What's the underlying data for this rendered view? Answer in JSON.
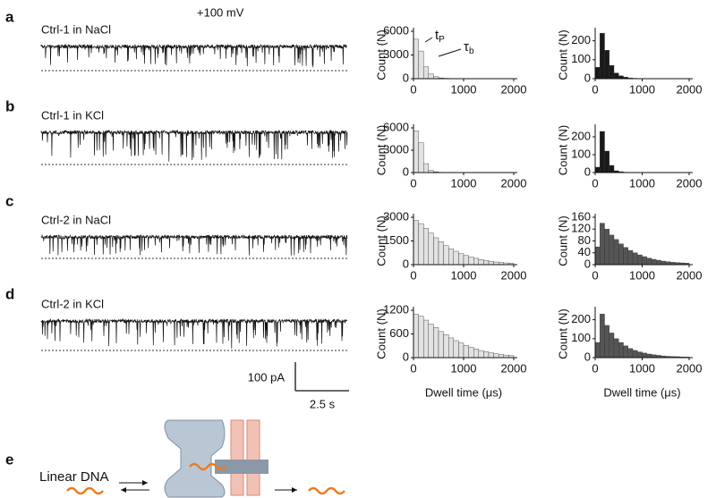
{
  "chart_data": [
    {
      "type": "histogram",
      "ylabel": "Count (N)",
      "bins": [
        0,
        100,
        200,
        300,
        400,
        500,
        600,
        700,
        800,
        900,
        1000,
        1100,
        1200,
        1300,
        1400,
        1500,
        1600,
        1700,
        1800,
        1900,
        2000
      ],
      "values": [
        5000,
        3500,
        1500,
        600,
        250,
        100,
        50,
        20,
        10,
        5,
        0,
        0,
        0,
        0,
        0,
        0,
        0,
        0,
        0,
        0
      ],
      "color": "#e2e2e2",
      "xlim": [
        0,
        2000
      ],
      "xticks": [
        0,
        1000,
        2000
      ],
      "ylim": [
        0,
        6000
      ],
      "yticks": [
        0,
        3000,
        6000
      ],
      "annotations": [
        {
          "text": "t",
          "subscript": "P"
        },
        {
          "text": "τ",
          "subscript": "b"
        }
      ]
    },
    {
      "type": "histogram",
      "ylabel": "Count (N)",
      "bins": [
        0,
        100,
        200,
        300,
        400,
        500,
        600,
        700,
        800,
        900,
        1000,
        1100,
        1200,
        1300,
        1400,
        1500,
        1600,
        1700,
        1800,
        1900,
        2000
      ],
      "values": [
        60,
        240,
        150,
        70,
        30,
        15,
        8,
        4,
        2,
        1,
        0,
        0,
        0,
        0,
        0,
        0,
        0,
        0,
        0,
        0
      ],
      "color": "#1a1a1a",
      "xlim": [
        0,
        2000
      ],
      "xticks": [
        0,
        1000,
        2000
      ],
      "ylim": [
        0,
        250
      ],
      "yticks": [
        0,
        100,
        200
      ]
    },
    {
      "type": "histogram",
      "ylabel": "Count (N)",
      "bins": [
        0,
        100,
        200,
        300,
        400,
        500,
        600,
        700,
        800,
        900,
        1000,
        1100,
        1200,
        1300,
        1400,
        1500,
        1600,
        1700,
        1800,
        1900,
        2000
      ],
      "values": [
        5600,
        4000,
        1200,
        300,
        100,
        40,
        15,
        5,
        0,
        0,
        0,
        0,
        0,
        0,
        0,
        0,
        0,
        0,
        0,
        0
      ],
      "color": "#e2e2e2",
      "xlim": [
        0,
        2000
      ],
      "xticks": [
        0,
        1000,
        2000
      ],
      "ylim": [
        0,
        6000
      ],
      "yticks": [
        0,
        3000,
        6000
      ]
    },
    {
      "type": "histogram",
      "ylabel": "Count (N)",
      "bins": [
        0,
        100,
        200,
        300,
        400,
        500,
        600,
        700,
        800,
        900,
        1000,
        1100,
        1200,
        1300,
        1400,
        1500,
        1600,
        1700,
        1800,
        1900,
        2000
      ],
      "values": [
        30,
        230,
        120,
        40,
        10,
        5,
        2,
        1,
        0,
        0,
        0,
        0,
        0,
        0,
        0,
        0,
        0,
        0,
        0,
        0
      ],
      "color": "#1a1a1a",
      "xlim": [
        0,
        2000
      ],
      "xticks": [
        0,
        1000,
        2000
      ],
      "ylim": [
        0,
        250
      ],
      "yticks": [
        0,
        100,
        200
      ]
    },
    {
      "type": "histogram",
      "ylabel": "Count (N)",
      "bins": [
        0,
        100,
        200,
        300,
        400,
        500,
        600,
        700,
        800,
        900,
        1000,
        1100,
        1200,
        1300,
        1400,
        1500,
        1600,
        1700,
        1800,
        1900,
        2000
      ],
      "values": [
        2800,
        2600,
        2300,
        2000,
        1700,
        1450,
        1200,
        1000,
        850,
        700,
        580,
        480,
        400,
        320,
        260,
        210,
        170,
        140,
        110,
        90
      ],
      "color": "#e2e2e2",
      "xlim": [
        0,
        2000
      ],
      "xticks": [
        0,
        1000,
        2000
      ],
      "ylim": [
        0,
        3000
      ],
      "yticks": [
        0,
        1500,
        3000
      ]
    },
    {
      "type": "histogram",
      "ylabel": "Count (N)",
      "bins": [
        0,
        100,
        200,
        300,
        400,
        500,
        600,
        700,
        800,
        900,
        1000,
        1100,
        1200,
        1300,
        1400,
        1500,
        1600,
        1700,
        1800,
        1900,
        2000
      ],
      "values": [
        60,
        140,
        120,
        100,
        85,
        70,
        58,
        48,
        40,
        33,
        27,
        22,
        18,
        15,
        12,
        10,
        8,
        7,
        6,
        5
      ],
      "color": "#555555",
      "xlim": [
        0,
        2000
      ],
      "xticks": [
        0,
        1000,
        2000
      ],
      "ylim": [
        0,
        160
      ],
      "yticks": [
        0,
        40,
        80,
        120,
        160
      ]
    },
    {
      "type": "histogram",
      "ylabel": "Count (N)",
      "xlabel": "Dwell time (μs)",
      "bins": [
        0,
        100,
        200,
        300,
        400,
        500,
        600,
        700,
        800,
        900,
        1000,
        1100,
        1200,
        1300,
        1400,
        1500,
        1600,
        1700,
        1800,
        1900,
        2000
      ],
      "values": [
        1100,
        1050,
        950,
        850,
        760,
        660,
        580,
        500,
        430,
        370,
        310,
        260,
        220,
        180,
        150,
        120,
        100,
        80,
        65,
        50
      ],
      "color": "#e2e2e2",
      "xlim": [
        0,
        2000
      ],
      "xticks": [
        0,
        1000,
        2000
      ],
      "ylim": [
        0,
        1200
      ],
      "yticks": [
        0,
        600,
        1200
      ]
    },
    {
      "type": "histogram",
      "ylabel": "Count (N)",
      "xlabel": "Dwell time (μs)",
      "bins": [
        0,
        100,
        200,
        300,
        400,
        500,
        600,
        700,
        800,
        900,
        1000,
        1100,
        1200,
        1300,
        1400,
        1500,
        1600,
        1700,
        1800,
        1900,
        2000
      ],
      "values": [
        80,
        230,
        170,
        130,
        100,
        80,
        62,
        48,
        38,
        30,
        24,
        19,
        15,
        12,
        9,
        7,
        6,
        5,
        4,
        3
      ],
      "color": "#555555",
      "xlim": [
        0,
        2000
      ],
      "xticks": [
        0,
        1000,
        2000
      ],
      "ylim": [
        0,
        250
      ],
      "yticks": [
        0,
        100,
        200
      ]
    }
  ],
  "voltage": "+100 mV",
  "traces": [
    {
      "letter": "a",
      "label": "Ctrl-1 in NaCl"
    },
    {
      "letter": "b",
      "label": "Ctrl-1 in KCl"
    },
    {
      "letter": "c",
      "label": "Ctrl-2 in NaCl"
    },
    {
      "letter": "d",
      "label": "Ctrl-2 in KCl"
    }
  ],
  "scale_bar": {
    "current": "100 pA",
    "time": "2.5 s"
  },
  "panel_e": {
    "letter": "e",
    "label": "Linear DNA"
  }
}
